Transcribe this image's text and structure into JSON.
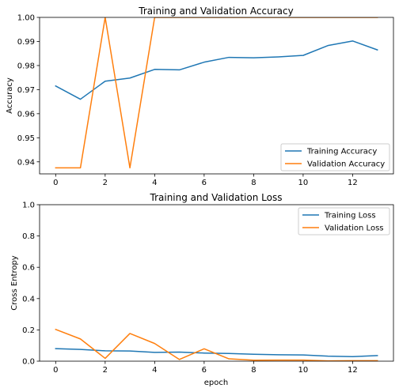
{
  "chart_data": [
    {
      "type": "line",
      "title": "Training and Validation Accuracy",
      "xlabel": "",
      "ylabel": "Accuracy",
      "xlim": [
        -0.65,
        13.65
      ],
      "ylim": [
        0.935,
        1.0
      ],
      "xticks": [
        0,
        2,
        4,
        6,
        8,
        10,
        12
      ],
      "xtick_labels": [
        "0",
        "2",
        "4",
        "6",
        "8",
        "10",
        "12"
      ],
      "yticks": [
        0.94,
        0.95,
        0.96,
        0.97,
        0.98,
        0.99,
        1.0
      ],
      "ytick_labels": [
        "0.94",
        "0.95",
        "0.96",
        "0.97",
        "0.98",
        "0.99",
        "1.00"
      ],
      "legend_position": "lower-right",
      "grid": false,
      "x": [
        0,
        1,
        2,
        3,
        4,
        5,
        6,
        7,
        8,
        9,
        10,
        11,
        12,
        13
      ],
      "series": [
        {
          "name": "Training Accuracy",
          "color": "#1f77b4",
          "values": [
            0.9715,
            0.966,
            0.9735,
            0.9748,
            0.9784,
            0.9782,
            0.9814,
            0.9834,
            0.9832,
            0.9836,
            0.9842,
            0.9883,
            0.9902,
            0.9865
          ]
        },
        {
          "name": "Validation Accuracy",
          "color": "#ff7f0e",
          "values": [
            0.9375,
            0.9375,
            1.0,
            0.9375,
            1.0,
            1.0,
            1.0,
            1.0,
            1.0,
            1.0,
            1.0,
            1.0,
            1.0,
            1.0
          ]
        }
      ]
    },
    {
      "type": "line",
      "title": "Training and Validation Loss",
      "xlabel": "epoch",
      "ylabel": "Cross Entropy",
      "xlim": [
        -0.65,
        13.65
      ],
      "ylim": [
        0.0,
        1.0
      ],
      "xticks": [
        0,
        2,
        4,
        6,
        8,
        10,
        12
      ],
      "xtick_labels": [
        "0",
        "2",
        "4",
        "6",
        "8",
        "10",
        "12"
      ],
      "yticks": [
        0.0,
        0.2,
        0.4,
        0.6,
        0.8,
        1.0
      ],
      "ytick_labels": [
        "0.0",
        "0.2",
        "0.4",
        "0.6",
        "0.8",
        "1.0"
      ],
      "legend_position": "upper-right",
      "grid": false,
      "x": [
        0,
        1,
        2,
        3,
        4,
        5,
        6,
        7,
        8,
        9,
        10,
        11,
        12,
        13
      ],
      "series": [
        {
          "name": "Training Loss",
          "color": "#1f77b4",
          "values": [
            0.08,
            0.075,
            0.066,
            0.065,
            0.056,
            0.058,
            0.052,
            0.049,
            0.044,
            0.041,
            0.04,
            0.032,
            0.029,
            0.036
          ]
        },
        {
          "name": "Validation Loss",
          "color": "#ff7f0e",
          "values": [
            0.203,
            0.142,
            0.018,
            0.177,
            0.113,
            0.011,
            0.079,
            0.015,
            0.006,
            0.007,
            0.007,
            0.002,
            0.003,
            0.003
          ]
        }
      ]
    }
  ]
}
